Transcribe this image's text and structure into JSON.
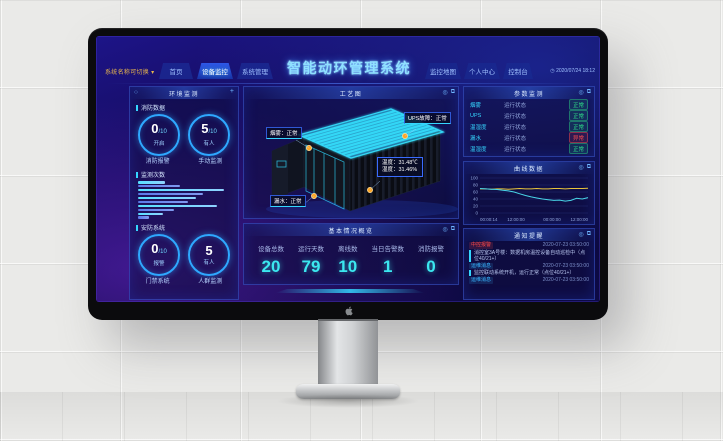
{
  "dashboard": {
    "header": {
      "selector_label": "系统名称可切换",
      "selector_caret": "▾",
      "tabs": [
        {
          "label": "首页"
        },
        {
          "label": "设备监控"
        },
        {
          "label": "系统管理"
        }
      ],
      "title": "智能动环管理系统",
      "right_tabs": [
        "监控地图",
        "个人中心",
        "控制台"
      ],
      "clock_icon": "◷",
      "datetime": "2020/07/24 18:12"
    },
    "left_panel": {
      "title": "环境监测",
      "circle_icon": "○",
      "plus_icon": "+",
      "fire_section": {
        "title": "消防数据",
        "gauges": [
          {
            "value": "0",
            "denom": "/10",
            "label": "开启",
            "caption": "消防报警"
          },
          {
            "value": "5",
            "denom": "/10",
            "label": "有人",
            "caption": "手动监测"
          }
        ]
      },
      "bars_section": {
        "title": "监测次数"
      },
      "security_section": {
        "title": "安防系统",
        "gauges": [
          {
            "value": "0",
            "denom": "/10",
            "label": "报警",
            "caption": "门禁系统"
          },
          {
            "value": "5",
            "denom": "",
            "label": "有人",
            "caption": "人群监测"
          }
        ]
      }
    },
    "scene_panel": {
      "title": "工艺图",
      "labels": {
        "smoke": "烟雾：正常",
        "ups": "UPS故障：正常",
        "temp": "温度：31.48℃",
        "humidity": "湿度：31.46%",
        "leak": "漏水：正常"
      }
    },
    "stats_panel": {
      "title": "基本情况概览",
      "stats": [
        {
          "label": "设备总数",
          "value": "20"
        },
        {
          "label": "运行天数",
          "value": "79"
        },
        {
          "label": "离线数",
          "value": "10"
        },
        {
          "label": "当日告警数",
          "value": "1"
        },
        {
          "label": "消防报警",
          "value": "0"
        }
      ]
    },
    "status_panel": {
      "title": "参数监测",
      "rows": [
        {
          "name": "烟雾",
          "field": "运行状态",
          "status": "正常",
          "level": "ok"
        },
        {
          "name": "UPS",
          "field": "运行状态",
          "status": "正常",
          "level": "ok"
        },
        {
          "name": "温湿度",
          "field": "运行状态",
          "status": "正常",
          "level": "ok"
        },
        {
          "name": "漏水",
          "field": "运行状态",
          "status": "异常",
          "level": "alert"
        },
        {
          "name": "温湿度",
          "field": "运行状态",
          "status": "正常",
          "level": "ok"
        }
      ]
    },
    "trend_panel": {
      "title": "曲线数据"
    },
    "notice_panel": {
      "title": "通知提醒",
      "items": [
        {
          "tag": "中控报警",
          "level": "alert",
          "time": "2020-07-23 03:50:00",
          "text": "消控室3A号楼：数据机房温控设备自动巡检中（点位40/21+）"
        },
        {
          "tag": "运维消息",
          "level": "info",
          "time": "2020-07-23 03:50:00",
          "text": "监控联动系统开机，运行正常（点位40/21+）"
        },
        {
          "tag": "运维消息",
          "level": "info",
          "time": "2020-07-23 03:50:00"
        }
      ]
    },
    "accent_colors": {
      "cyan": "#35d6ff",
      "ok_green": "#2fe08a",
      "alert_red": "#ff5050",
      "amber": "#e8b64c"
    }
  },
  "chart_data": [
    {
      "type": "bar",
      "orientation": "horizontal",
      "title": "监测次数",
      "values": [
        30,
        46,
        95,
        72,
        64,
        55,
        88,
        40,
        28,
        12
      ],
      "xlim": [
        0,
        100
      ]
    },
    {
      "type": "line",
      "title": "曲线数据",
      "x_ticks": [
        "00:00:14",
        "12:00:00",
        "00:00:00",
        "12:00:00"
      ],
      "y_ticks": [
        0,
        20,
        40,
        60,
        80,
        100
      ],
      "ylim": [
        0,
        100
      ],
      "grid": true,
      "series": [
        {
          "name": "baseline",
          "color": "#e9c53d",
          "values": [
            69,
            69,
            68,
            69,
            69,
            68,
            69,
            70,
            69,
            69,
            70,
            69,
            69,
            70,
            70,
            69,
            70,
            70,
            70,
            71
          ]
        },
        {
          "name": "measured",
          "color": "#49d6e8",
          "values": [
            70,
            69,
            68,
            67,
            65,
            63,
            60,
            55,
            50,
            46,
            43,
            40,
            38,
            36,
            37,
            34,
            36,
            42,
            40,
            44
          ]
        }
      ]
    }
  ]
}
